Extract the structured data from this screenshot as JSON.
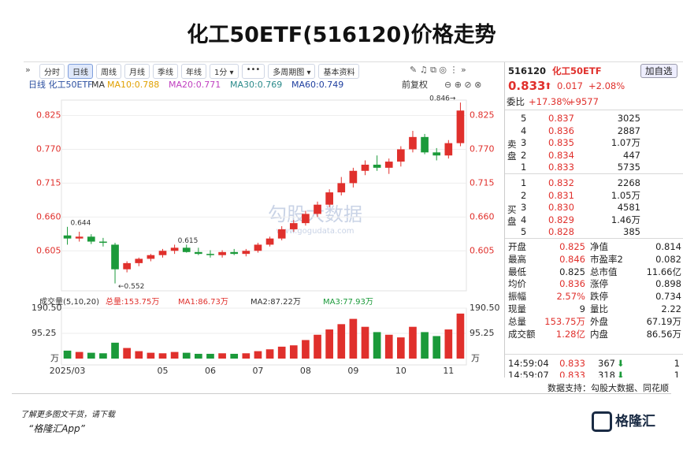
{
  "title": "化工50ETF(516120)价格走势",
  "toolbar": {
    "items": [
      "分时",
      "日线",
      "周线",
      "月线",
      "季线",
      "年线",
      "1分 ▾",
      "•••",
      "多周期图 ▾",
      "基本资料"
    ],
    "active": 1
  },
  "indicator": {
    "label": "日线 化工50ETF",
    "ma": [
      {
        "text": "MA",
        "color": "#333333"
      },
      {
        "text": "MA10:0.788",
        "color": "#e0a000"
      },
      {
        "text": "MA20:0.771",
        "color": "#c040c0"
      },
      {
        "text": "MA30:0.769",
        "color": "#2a8a8a"
      },
      {
        "text": "MA60:0.749",
        "color": "#2040a0"
      }
    ],
    "adjust": "前复权"
  },
  "watermark": {
    "brand": "勾股大数据",
    "url": "www.gogudata.com"
  },
  "chart_data": [
    {
      "type": "candlestick",
      "up_color": "#e0302c",
      "down_color": "#1b9a3a",
      "categories": [
        "2025/03",
        null,
        null,
        null,
        null,
        null,
        null,
        null,
        "05",
        null,
        null,
        null,
        "06",
        null,
        null,
        null,
        "07",
        null,
        null,
        null,
        "08",
        null,
        null,
        null,
        "09",
        null,
        null,
        null,
        "10",
        null,
        null,
        null,
        "11",
        null
      ],
      "open": [
        0.63,
        0.625,
        0.628,
        0.62,
        0.615,
        0.575,
        0.585,
        0.592,
        0.598,
        0.605,
        0.61,
        0.603,
        0.6,
        0.598,
        0.603,
        0.6,
        0.605,
        0.615,
        0.625,
        0.64,
        0.65,
        0.665,
        0.68,
        0.7,
        0.715,
        0.735,
        0.745,
        0.74,
        0.75,
        0.77,
        0.79,
        0.765,
        0.76,
        0.78
      ],
      "high": [
        0.644,
        0.636,
        0.632,
        0.626,
        0.618,
        0.588,
        0.594,
        0.6,
        0.608,
        0.615,
        0.615,
        0.61,
        0.606,
        0.606,
        0.608,
        0.608,
        0.618,
        0.628,
        0.645,
        0.655,
        0.67,
        0.685,
        0.705,
        0.725,
        0.74,
        0.752,
        0.76,
        0.755,
        0.775,
        0.8,
        0.795,
        0.772,
        0.785,
        0.846
      ],
      "low": [
        0.615,
        0.62,
        0.616,
        0.612,
        0.552,
        0.57,
        0.58,
        0.588,
        0.594,
        0.6,
        0.602,
        0.598,
        0.594,
        0.594,
        0.598,
        0.596,
        0.602,
        0.612,
        0.622,
        0.636,
        0.646,
        0.66,
        0.676,
        0.695,
        0.708,
        0.728,
        0.735,
        0.73,
        0.742,
        0.765,
        0.762,
        0.752,
        0.755,
        0.775
      ],
      "close": [
        0.625,
        0.628,
        0.62,
        0.618,
        0.575,
        0.585,
        0.592,
        0.598,
        0.605,
        0.61,
        0.603,
        0.6,
        0.598,
        0.603,
        0.6,
        0.605,
        0.615,
        0.625,
        0.64,
        0.65,
        0.665,
        0.68,
        0.7,
        0.715,
        0.735,
        0.745,
        0.74,
        0.75,
        0.77,
        0.79,
        0.765,
        0.76,
        0.78,
        0.833
      ],
      "ylim": [
        0.54,
        0.85
      ],
      "yticks": [
        {
          "value": 0.605,
          "label": "0.605"
        },
        {
          "value": 0.66,
          "label": "0.660"
        },
        {
          "value": 0.715,
          "label": "0.715"
        },
        {
          "value": 0.77,
          "label": "0.770"
        },
        {
          "value": 0.825,
          "label": "0.825"
        }
      ],
      "annotations": [
        {
          "text": "0.846→",
          "value": 0.846,
          "index": 33
        },
        {
          "text": "0.644",
          "value": 0.644,
          "index": 0
        },
        {
          "text": "0.615",
          "value": 0.615,
          "index": 9
        },
        {
          "text": "←0.552",
          "value": 0.552,
          "index": 4
        }
      ]
    },
    {
      "type": "bar",
      "title": "成交量(5,10,20)",
      "legend": [
        {
          "text": "总量:153.75万",
          "color": "#e0302c"
        },
        {
          "text": "MA1:86.73万",
          "color": "#e0302c"
        },
        {
          "text": "MA2:87.22万",
          "color": "#333333"
        },
        {
          "text": "MA3:77.93万",
          "color": "#1b9a3a"
        }
      ],
      "unit": "万",
      "values": [
        30,
        25,
        22,
        20,
        60,
        40,
        28,
        22,
        20,
        25,
        22,
        18,
        18,
        20,
        18,
        20,
        28,
        35,
        45,
        50,
        70,
        90,
        110,
        130,
        150,
        120,
        100,
        90,
        80,
        120,
        100,
        85,
        110,
        170
      ],
      "ylim": [
        0,
        190.5
      ],
      "yticks": [
        {
          "value": 95.25,
          "label": "95.25"
        },
        {
          "value": 190.5,
          "label": "190.50"
        }
      ]
    }
  ],
  "quote": {
    "code": "516120",
    "name": "化工50ETF",
    "add": "加自选",
    "price": "0.833",
    "change": "0.017",
    "pct": "+2.08%",
    "ratio_label": "委比",
    "ratio": "+17.38%",
    "diff": "+9577"
  },
  "order_book": {
    "sell_label": "卖盘",
    "buy_label": "买盘",
    "sell": [
      [
        "5",
        "0.837",
        "3025"
      ],
      [
        "4",
        "0.836",
        "2887"
      ],
      [
        "3",
        "0.835",
        "1.07万"
      ],
      [
        "2",
        "0.834",
        "447"
      ],
      [
        "1",
        "0.833",
        "5735"
      ]
    ],
    "buy": [
      [
        "1",
        "0.832",
        "2268"
      ],
      [
        "2",
        "0.831",
        "1.05万"
      ],
      [
        "3",
        "0.830",
        "4581"
      ],
      [
        "4",
        "0.829",
        "1.46万"
      ],
      [
        "5",
        "0.828",
        "385"
      ]
    ]
  },
  "stats": [
    [
      "开盘",
      "0.825",
      "净值",
      "0.814"
    ],
    [
      "最高",
      "0.846",
      "市盈率2",
      "0.082"
    ],
    [
      "最低",
      "0.825",
      "总市值",
      "11.66亿"
    ],
    [
      "均价",
      "0.836",
      "涨停",
      "0.898"
    ],
    [
      "振幅",
      "2.57%",
      "跌停",
      "0.734"
    ],
    [
      "现量",
      "9",
      "量比",
      "2.22"
    ],
    [
      "总量",
      "153.75万",
      "外盘",
      "67.19万"
    ],
    [
      "成交额",
      "1.28亿",
      "内盘",
      "86.56万"
    ]
  ],
  "trades": [
    [
      "14:59:04",
      "0.833",
      "367",
      "1"
    ],
    [
      "14:59:07",
      "0.833",
      "318",
      "1"
    ]
  ],
  "footer": {
    "source": "数据支持：勾股大数据、同花顺",
    "promo": "了解更多图文干货，请下载",
    "app": "“格隆汇App”",
    "logo": "格隆汇"
  }
}
